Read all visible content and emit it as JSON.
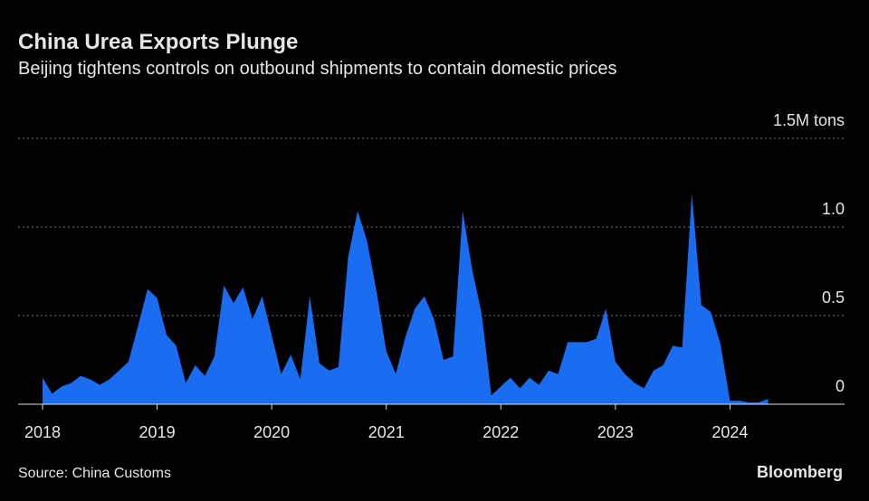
{
  "chart_data": {
    "type": "area",
    "title": "China Urea Exports Plunge",
    "subtitle": "Beijing tightens controls on outbound shipments to contain domestic prices",
    "source": "Source: China Customs",
    "brand": "Bloomberg",
    "color": "#1a6cf0",
    "grid": true,
    "xlim": [
      2018,
      2025
    ],
    "xticks": [
      2018,
      2019,
      2020,
      2021,
      2022,
      2023,
      2024
    ],
    "ylim": [
      0,
      1.5
    ],
    "yticks": [
      0,
      0.5,
      {
        "value": 1.0,
        "label": "1.0"
      },
      {
        "value": 1.5,
        "label": "1.5M tons"
      }
    ],
    "x": [
      2018,
      2018.083,
      2018.167,
      2018.25,
      2018.333,
      2018.417,
      2018.5,
      2018.583,
      2018.667,
      2018.75,
      2018.833,
      2018.917,
      2019,
      2019.083,
      2019.167,
      2019.25,
      2019.333,
      2019.417,
      2019.5,
      2019.583,
      2019.667,
      2019.75,
      2019.833,
      2019.917,
      2020,
      2020.083,
      2020.167,
      2020.25,
      2020.333,
      2020.417,
      2020.5,
      2020.583,
      2020.667,
      2020.75,
      2020.833,
      2020.917,
      2021,
      2021.083,
      2021.167,
      2021.25,
      2021.333,
      2021.417,
      2021.5,
      2021.583,
      2021.667,
      2021.75,
      2021.833,
      2021.917,
      2022,
      2022.083,
      2022.167,
      2022.25,
      2022.333,
      2022.417,
      2022.5,
      2022.583,
      2022.667,
      2022.75,
      2022.833,
      2022.917,
      2023,
      2023.083,
      2023.167,
      2023.25,
      2023.333,
      2023.417,
      2023.5,
      2023.583,
      2023.667,
      2023.75,
      2023.833,
      2023.917,
      2024,
      2024.083,
      2024.167,
      2024.25,
      2024.333
    ],
    "values": [
      0.15,
      0.06,
      0.1,
      0.12,
      0.16,
      0.14,
      0.11,
      0.14,
      0.19,
      0.24,
      0.44,
      0.65,
      0.6,
      0.39,
      0.33,
      0.12,
      0.22,
      0.16,
      0.27,
      0.67,
      0.57,
      0.66,
      0.48,
      0.61,
      0.39,
      0.17,
      0.28,
      0.14,
      0.61,
      0.23,
      0.19,
      0.21,
      0.83,
      1.09,
      0.92,
      0.63,
      0.3,
      0.17,
      0.38,
      0.54,
      0.61,
      0.48,
      0.25,
      0.27,
      1.09,
      0.76,
      0.51,
      0.05,
      0.1,
      0.15,
      0.09,
      0.15,
      0.11,
      0.19,
      0.17,
      0.35,
      0.35,
      0.35,
      0.37,
      0.54,
      0.24,
      0.17,
      0.12,
      0.09,
      0.19,
      0.22,
      0.33,
      0.32,
      1.19,
      0.56,
      0.52,
      0.34,
      0.02,
      0.02,
      0.01,
      0.01,
      0.03
    ]
  }
}
